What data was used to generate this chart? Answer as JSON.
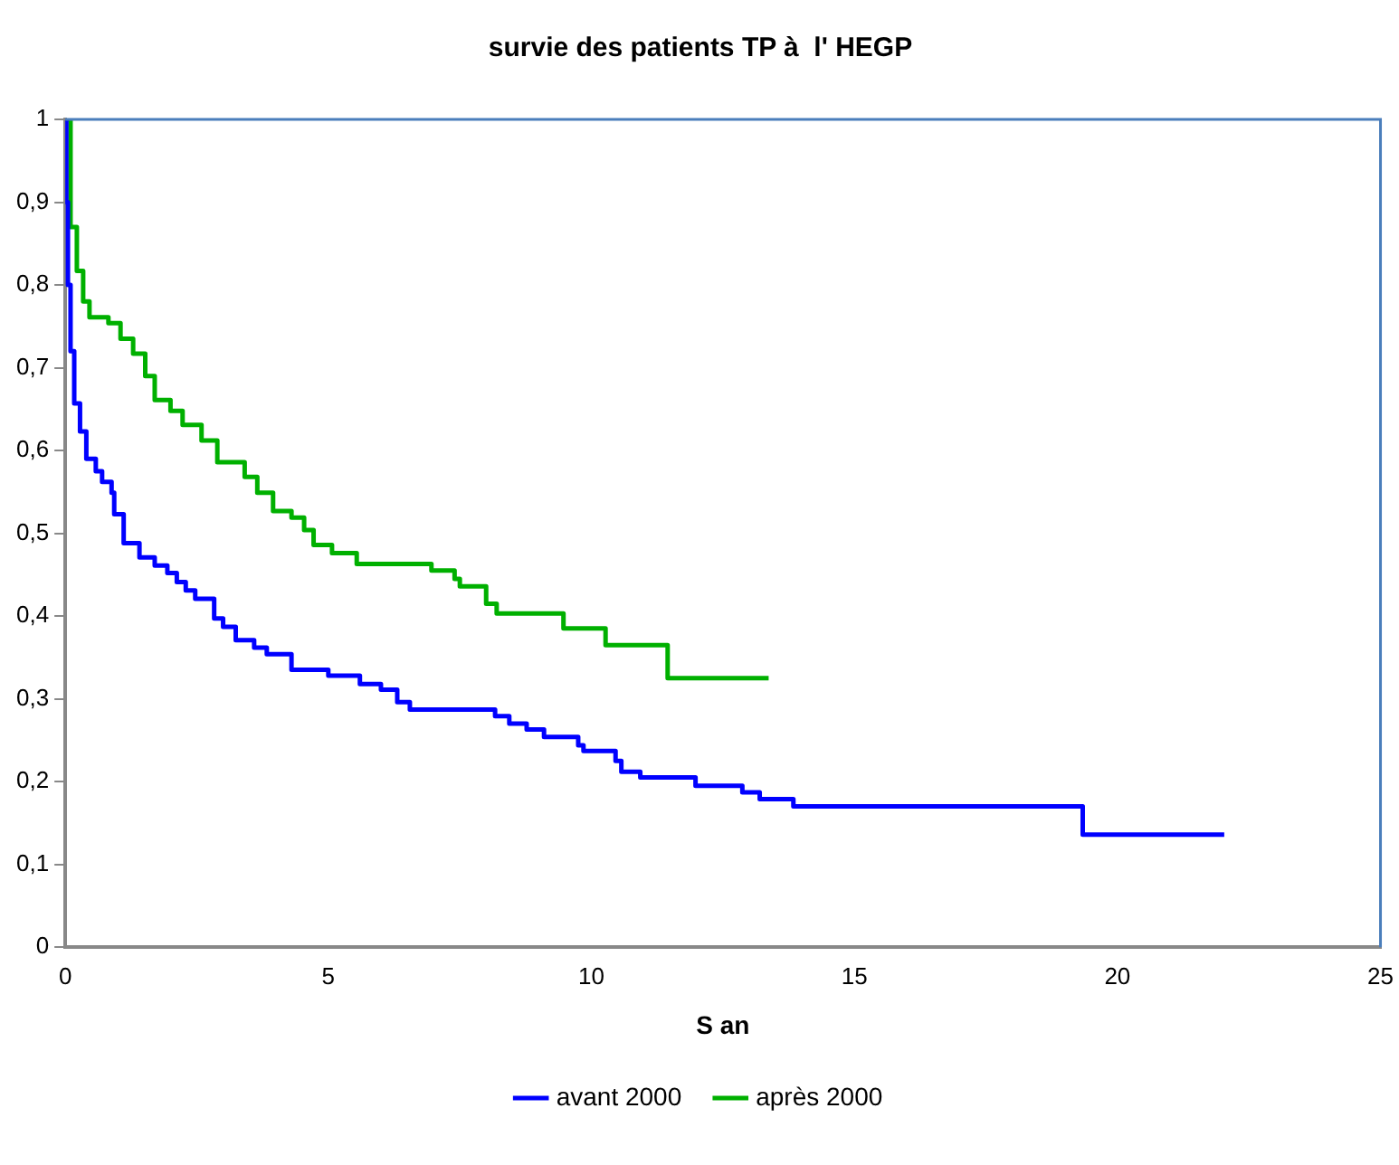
{
  "chart_data": {
    "type": "step",
    "title": "survie des patients TP à  l' HEGP",
    "xlabel": "S an",
    "xlim": [
      0,
      25
    ],
    "xticks": [
      0,
      5,
      10,
      15,
      20,
      25
    ],
    "ylim": [
      0,
      1
    ],
    "yticks": [
      0,
      {
        "value": 0.1,
        "label": "0,1"
      },
      {
        "value": 0.2,
        "label": "0,2"
      },
      {
        "value": 0.3,
        "label": "0,3"
      },
      {
        "value": 0.4,
        "label": "0,4"
      },
      {
        "value": 0.5,
        "label": "0,5"
      },
      {
        "value": 0.6,
        "label": "0,6"
      },
      {
        "value": 0.7,
        "label": "0,7"
      },
      {
        "value": 0.8,
        "label": "0,8"
      },
      {
        "value": 0.9,
        "label": "0,9"
      },
      1
    ],
    "grid": false,
    "legend": "bottom",
    "marker": "none",
    "line_style": "solid",
    "series": [
      {
        "name": "avant 2000",
        "color": "#0000ff",
        "x": [
          0,
          0.02,
          0.05,
          0.1,
          0.17,
          0.28,
          0.4,
          0.58,
          0.7,
          0.88,
          0.93,
          1.11,
          1.41,
          1.7,
          1.94,
          2.12,
          2.29,
          2.47,
          2.83,
          3.0,
          3.24,
          3.59,
          3.83,
          4.3,
          5.0,
          5.6,
          6.0,
          6.31,
          6.55,
          8.17,
          8.44,
          8.77,
          9.1,
          9.75,
          9.85,
          10.46,
          10.57,
          10.93,
          11.98,
          12.87,
          13.2,
          13.84,
          19.34,
          22.03
        ],
        "values": [
          1,
          0.9,
          0.8,
          0.72,
          0.657,
          0.623,
          0.59,
          0.575,
          0.562,
          0.549,
          0.523,
          0.488,
          0.471,
          0.461,
          0.452,
          0.441,
          0.431,
          0.421,
          0.397,
          0.387,
          0.371,
          0.362,
          0.354,
          0.335,
          0.328,
          0.318,
          0.311,
          0.296,
          0.287,
          0.279,
          0.27,
          0.263,
          0.254,
          0.244,
          0.237,
          0.225,
          0.212,
          0.205,
          0.195,
          0.187,
          0.179,
          0.17,
          0.136,
          0.136
        ]
      },
      {
        "name": "après 2000",
        "color": "#00b000",
        "x": [
          0,
          0.1,
          0.22,
          0.34,
          0.46,
          0.82,
          1.05,
          1.29,
          1.52,
          1.7,
          2.0,
          2.23,
          2.59,
          2.89,
          3.41,
          3.65,
          3.95,
          4.3,
          4.54,
          4.72,
          5.07,
          5.54,
          6.96,
          7.4,
          7.5,
          8.0,
          8.2,
          9.47,
          10.27,
          11.45,
          13.37
        ],
        "values": [
          1,
          0.87,
          0.817,
          0.78,
          0.761,
          0.754,
          0.735,
          0.717,
          0.69,
          0.661,
          0.648,
          0.631,
          0.612,
          0.586,
          0.568,
          0.549,
          0.527,
          0.519,
          0.504,
          0.486,
          0.476,
          0.463,
          0.455,
          0.445,
          0.436,
          0.415,
          0.403,
          0.385,
          0.365,
          0.325,
          0.325
        ]
      }
    ]
  }
}
